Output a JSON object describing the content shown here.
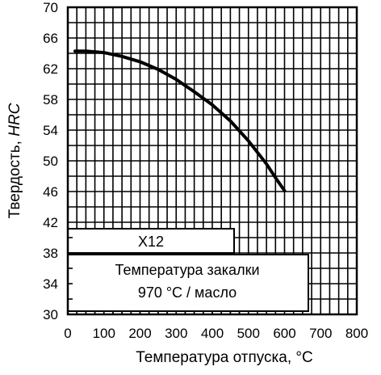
{
  "chart_data": {
    "type": "line",
    "xlabel": "Температура отпуска, °С",
    "ylabel_prefix": "Твердость, ",
    "ylabel_unit": "HRC",
    "xlim": [
      0,
      800
    ],
    "ylim": [
      30,
      70
    ],
    "x_ticks": [
      0,
      100,
      200,
      300,
      400,
      500,
      600,
      700,
      800
    ],
    "y_ticks": [
      30,
      34,
      38,
      42,
      46,
      50,
      54,
      58,
      62,
      66,
      70
    ],
    "grid": true,
    "series": [
      {
        "x": [
          20,
          50,
          100,
          150,
          200,
          250,
          300,
          350,
          400,
          450,
          500,
          550,
          575,
          600
        ],
        "values": [
          64.3,
          64.3,
          64.1,
          63.6,
          62.9,
          61.9,
          60.6,
          59.0,
          57.3,
          55.2,
          52.6,
          49.6,
          47.8,
          46.1
        ]
      }
    ],
    "annotations": {
      "steel_grade": "Х12",
      "quench_label": "Температура закалки",
      "quench_value": "970 °С / масло"
    }
  }
}
